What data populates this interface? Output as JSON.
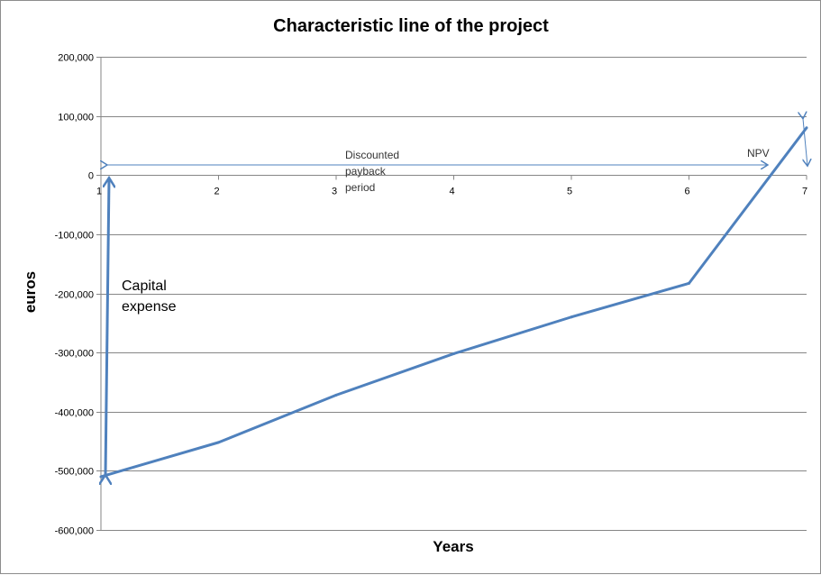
{
  "chart_data": {
    "type": "line",
    "title": "Characteristic line of the project",
    "xlabel": "Years",
    "ylabel": "euros",
    "x": [
      1,
      2,
      3,
      4,
      5,
      6,
      7
    ],
    "ylim": [
      -600000,
      200000
    ],
    "yticks": [
      200000,
      100000,
      0,
      -100000,
      -200000,
      -300000,
      -400000,
      -500000,
      -600000
    ],
    "ytick_labels": [
      "200,000",
      "100,000",
      "0",
      "-100,000",
      "-200,000",
      "-300,000",
      "-400,000",
      "-500,000",
      "-600,000"
    ],
    "xtick_labels": [
      "1",
      "2",
      "3",
      "4",
      "5",
      "6",
      "7"
    ],
    "series": [
      {
        "values": [
          -510000,
          -452000,
          -372000,
          -302000,
          -240000,
          -183000,
          80000
        ]
      }
    ],
    "grid": true,
    "legend": "none",
    "colors": {
      "line": "#4f81bd",
      "grid": "#868686",
      "arrow": "#4f81bd"
    },
    "annotations": {
      "capital_expense": [
        "Capital",
        "expense"
      ],
      "discounted_payback": [
        "Discounted",
        "payback",
        "period"
      ],
      "npv": "NPV"
    }
  }
}
